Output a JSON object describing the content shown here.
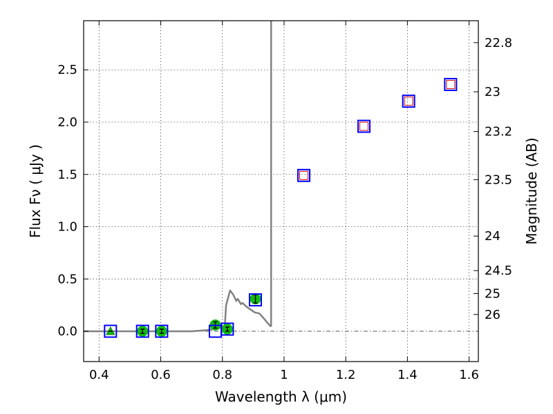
{
  "chart_data": {
    "type": "scatter",
    "title": "",
    "xlabel": "Wavelength  λ (μm)",
    "ylabel": "Flux  Fν  ( μJy )",
    "ylabel_right": "Magnitude (AB)",
    "xlim": [
      0.35,
      1.63
    ],
    "ylim": [
      -0.29,
      2.97
    ],
    "grid": true,
    "x_ticks": [
      0.4,
      0.6,
      0.8,
      1.0,
      1.2,
      1.4,
      1.6
    ],
    "x_tick_labels": [
      "0.4",
      "0.6",
      "0.8",
      "1",
      "1.2",
      "1.4",
      "1.6"
    ],
    "y_ticks": [
      0.0,
      0.5,
      1.0,
      1.5,
      2.0,
      2.5
    ],
    "y_tick_labels": [
      "0.0",
      "0.5",
      "1.0",
      "1.5",
      "2.0",
      "2.5"
    ],
    "right_ticks": [
      {
        "label": "22.8",
        "flux": 2.76
      },
      {
        "label": "23",
        "flux": 2.29
      },
      {
        "label": "23.2",
        "flux": 1.91
      },
      {
        "label": "23.5",
        "flux": 1.45
      },
      {
        "label": "24",
        "flux": 0.91
      },
      {
        "label": "24.5",
        "flux": 0.58
      },
      {
        "label": "25",
        "flux": 0.36
      },
      {
        "label": "26",
        "flux": 0.16
      }
    ],
    "model_sed": {
      "color": "#808080",
      "x": [
        0.35,
        0.7,
        0.75,
        0.79,
        0.8,
        0.808,
        0.812,
        0.825,
        0.835,
        0.845,
        0.85,
        0.86,
        0.865,
        0.88,
        0.895,
        0.905,
        0.92,
        0.935,
        0.955,
        0.958,
        0.958
      ],
      "y": [
        0.0,
        0.0,
        0.01,
        0.03,
        0.04,
        0.06,
        0.25,
        0.39,
        0.35,
        0.29,
        0.31,
        0.26,
        0.27,
        0.23,
        0.2,
        0.18,
        0.17,
        0.12,
        0.05,
        0.05,
        2.97
      ]
    },
    "model_photometry": {
      "marker": "open-square",
      "color": "#0000ff",
      "x": [
        0.437,
        0.541,
        0.603,
        0.777,
        0.816,
        0.907,
        1.064,
        1.259,
        1.404,
        1.54
      ],
      "y": [
        0.0,
        0.0,
        0.0,
        0.0,
        0.02,
        0.3,
        1.49,
        1.96,
        2.2,
        2.36
      ]
    },
    "observed_detections": {
      "marker": "filled-circle",
      "color": "#11bb11",
      "x": [
        0.541,
        0.603,
        0.777,
        0.816,
        0.907
      ],
      "y": [
        0.0,
        0.0,
        0.06,
        0.02,
        0.31
      ],
      "yerr": [
        0.02,
        0.02,
        0.03,
        0.02,
        0.04
      ]
    },
    "observed_limit": {
      "marker": "filled-triangle",
      "color": "#11bb11",
      "x": [
        0.437
      ],
      "y": [
        0.0
      ]
    },
    "upper_limits": {
      "marker": "small-open-square",
      "color": "#cc0000",
      "x": [
        1.064,
        1.259,
        1.404,
        1.54
      ],
      "y": [
        1.49,
        1.96,
        2.2,
        2.36
      ]
    },
    "zero_line": {
      "y": 0.0,
      "style": "dash-dot",
      "color": "#555555"
    }
  }
}
